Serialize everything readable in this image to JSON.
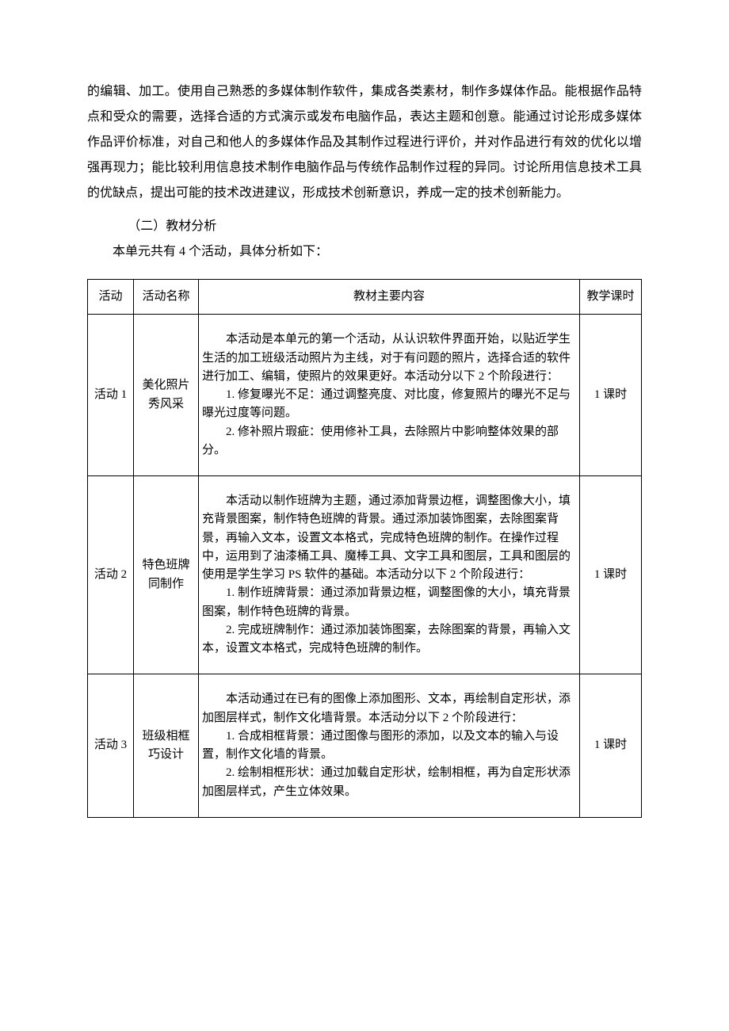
{
  "intro_paragraph": "的编辑、加工。使用自己熟悉的多媒体制作软件，集成各类素材，制作多媒体作品。能根据作品特点和受众的需要，选择合适的方式演示或发布电脑作品，表达主题和创意。能通过讨论形成多媒体作品评价标准，对自己和他人的多媒体作品及其制作过程进行评价，并对作品进行有效的优化以增强再现力；能比较利用信息技术制作电脑作品与传统作品制作过程的异同。讨论所用信息技术工具的优缺点，提出可能的技术改进建议，形成技术创新意识，养成一定的技术创新能力。",
  "section_title": "（二）教材分析",
  "unit_line": "本单元共有 4 个活动，具体分析如下：",
  "table": {
    "headers": {
      "activity": "活动",
      "name": "活动名称",
      "content": "教材主要内容",
      "hours": "教学课时"
    },
    "rows": [
      {
        "activity": "活动 1",
        "name": "美化照片秀风采",
        "content_p1": "本活动是本单元的第一个活动，从认识软件界面开始，以贴近学生生活的加工班级活动照片为主线，对于有问题的照片，选择合适的软件进行加工、编辑，使照片的效果更好。本活动分以下 2 个阶段进行：",
        "content_i1": "1. 修复曝光不足：通过调整亮度、对比度，修复照片的曝光不足与曝光过度等问题。",
        "content_i2": "2. 修补照片瑕疵：使用修补工具，去除照片中影响整体效果的部分。",
        "hours": "1 课时"
      },
      {
        "activity": "活动 2",
        "name": "特色班牌同制作",
        "content_p1": "本活动以制作班牌为主题，通过添加背景边框，调整图像大小，填充背景图案，制作特色班牌的背景。通过添加装饰图案，去除图案背景，再输入文本，设置文本格式，完成特色班牌的制作。在操作过程中，运用到了油漆桶工具、魔棒工具、文字工具和图层，工具和图层的使用是学生学习 PS 软件的基础。本活动分以下 2 个阶段进行：",
        "content_i1": "1. 制作班牌背景：通过添加背景边框，调整图像的大小，填充背景图案，制作特色班牌的背景。",
        "content_i2": "2. 完成班牌制作：通过添加装饰图案，去除图案的背景，再输入文本，设置文本格式，完成特色班牌的制作。",
        "hours": "1 课时"
      },
      {
        "activity": "活动 3",
        "name": "班级相框巧设计",
        "content_p1": "本活动通过在已有的图像上添加图形、文本，再绘制自定形状，添加图层样式，制作文化墙背景。本活动分以下 2 个阶段进行：",
        "content_i1": "1. 合成相框背景：通过图像与图形的添加，以及文本的输入与设置，制作文化墙的背景。",
        "content_i2": "2. 绘制相框形状：通过加载自定形状，绘制相框，再为自定形状添加图层样式，产生立体效果。",
        "hours": "1 课时"
      }
    ]
  }
}
